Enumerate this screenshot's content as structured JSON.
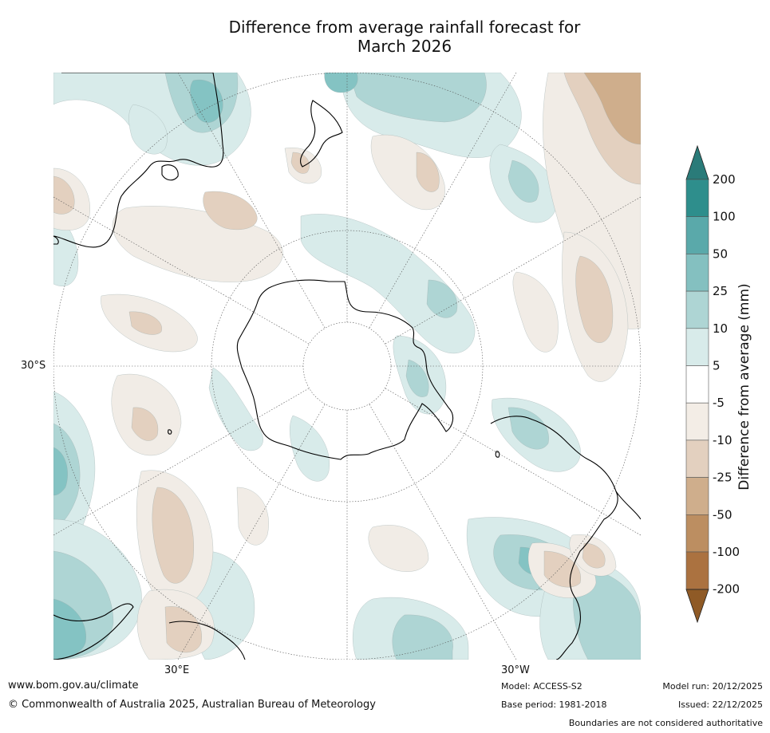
{
  "title_line1": "Difference from average rainfall forecast for",
  "title_line2": "March 2026",
  "map": {
    "projection": "south polar stereographic",
    "graticule_labels": {
      "lat": "30°S",
      "lon_east": "30°E",
      "lon_west": "30°W"
    },
    "colors": {
      "wet5": "#d8ebea",
      "wet10": "#aed5d4",
      "wet25": "#84c3c3",
      "wet50": "#5aaeae",
      "dry5": "#f1ece6",
      "dry10": "#e3d0bf",
      "dry25": "#cfae8c",
      "dry50": "#bc8e61",
      "land": "#000000"
    }
  },
  "legend": {
    "label": "Difference from average (mm)",
    "ticks": [
      "200",
      "100",
      "50",
      "25",
      "10",
      "5",
      "-5",
      "-10",
      "-25",
      "-50",
      "-100",
      "-200"
    ],
    "colors": [
      "#2e8e8c",
      "#5aa9aa",
      "#84c0c0",
      "#aed5d4",
      "#d8ebea",
      "#ffffff",
      "#f3ede6",
      "#e3d0bf",
      "#cfae8c",
      "#bc8e61",
      "#ab7240"
    ],
    "arrow_top_color": "#2a7b79",
    "arrow_bottom_color": "#8f5a26"
  },
  "footer": {
    "website": "www.bom.gov.au/climate",
    "copyright": "© Commonwealth of Australia 2025, Australian Bureau of Meteorology",
    "model": "Model: ACCESS-S2",
    "base_period": "Base period: 1981-2018",
    "model_run": "Model run: 20/12/2025",
    "issued": "Issued: 22/12/2025",
    "disclaimer": "Boundaries are not considered authoritative"
  }
}
